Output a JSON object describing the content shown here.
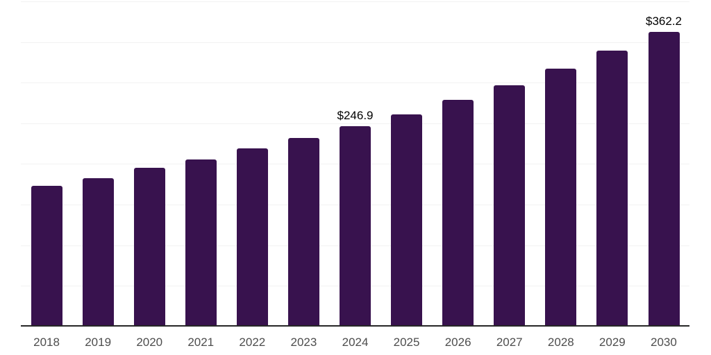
{
  "chart_data": {
    "type": "bar",
    "title": "",
    "xlabel": "",
    "ylabel": "",
    "categories": [
      "2018",
      "2019",
      "2020",
      "2021",
      "2022",
      "2023",
      "2024",
      "2025",
      "2026",
      "2027",
      "2028",
      "2029",
      "2030"
    ],
    "values": [
      173.0,
      182.5,
      195.0,
      206.0,
      219.0,
      232.0,
      246.9,
      261.4,
      279.0,
      297.0,
      317.5,
      339.5,
      362.2
    ],
    "data_labels": [
      {
        "category": "2024",
        "text": "$246.9"
      },
      {
        "category": "2030",
        "text": "$362.2"
      }
    ],
    "ylim": [
      0,
      400
    ],
    "grid": true,
    "grid_interval": 50,
    "legend": "none",
    "yticks_shown": false,
    "currency_prefix": "$"
  },
  "colors": {
    "bar": "#38124E",
    "axis_line": "#262626",
    "gridline": "#F2F2F2",
    "tick_label": "#4D4D4D",
    "data_label": "#000000",
    "background": "#FFFFFF"
  }
}
